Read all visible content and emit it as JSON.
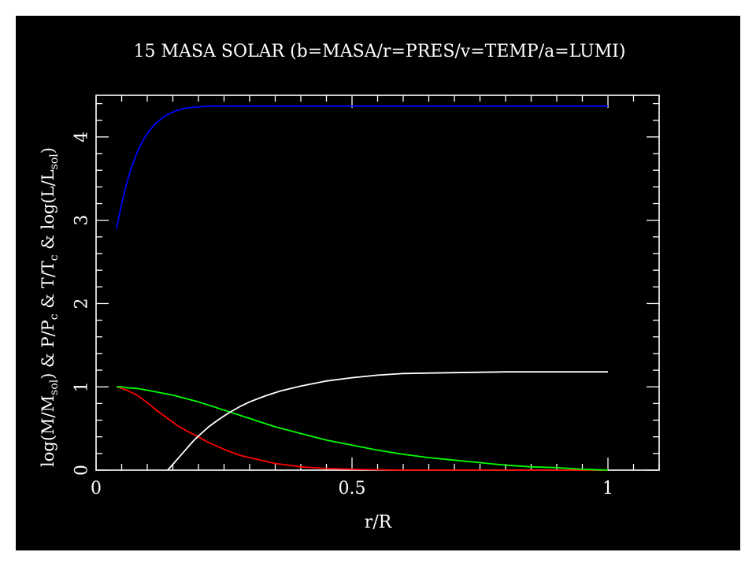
{
  "chart_data": {
    "type": "line",
    "title": "15 MASA SOLAR (b=MASA/r=PRES/v=TEMP/a=LUMI)",
    "xlabel": "r/R",
    "ylabel": {
      "p1": "log(M/M",
      "s1": "sol",
      "p2": ") & P/P",
      "s2": "c",
      "p3": " & T/T",
      "s3": "c",
      "p4": " & log(L/L",
      "s4": "sol",
      "p5": ")"
    },
    "xlim": [
      0,
      1.1
    ],
    "ylim": [
      0,
      4.5
    ],
    "xticks": [
      {
        "value": 0,
        "label": "0"
      },
      {
        "value": 0.5,
        "label": "0.5"
      },
      {
        "value": 1,
        "label": "1"
      }
    ],
    "yticks": [
      {
        "value": 0,
        "label": "0"
      },
      {
        "value": 1,
        "label": "1"
      },
      {
        "value": 2,
        "label": "2"
      },
      {
        "value": 3,
        "label": "3"
      },
      {
        "value": 4,
        "label": "4"
      }
    ],
    "grid": false,
    "colors": {
      "background": "#000000",
      "axes": "#ffffff"
    },
    "series": [
      {
        "color": "#0000ff",
        "x": [
          0.04,
          0.05,
          0.06,
          0.07,
          0.08,
          0.09,
          0.1,
          0.11,
          0.12,
          0.13,
          0.14,
          0.15,
          0.16,
          0.17,
          0.18,
          0.2,
          0.22,
          0.25,
          0.3,
          0.4,
          0.5,
          0.6,
          0.7,
          0.8,
          0.9,
          1.0
        ],
        "y": [
          2.9,
          3.2,
          3.45,
          3.65,
          3.81,
          3.94,
          4.04,
          4.12,
          4.18,
          4.23,
          4.27,
          4.3,
          4.32,
          4.34,
          4.35,
          4.36,
          4.37,
          4.37,
          4.37,
          4.37,
          4.37,
          4.37,
          4.37,
          4.37,
          4.37,
          4.37
        ]
      },
      {
        "color": "#ff0000",
        "x": [
          0.04,
          0.05,
          0.06,
          0.08,
          0.1,
          0.12,
          0.14,
          0.16,
          0.18,
          0.2,
          0.22,
          0.25,
          0.28,
          0.3,
          0.35,
          0.4,
          0.45,
          0.5,
          0.55,
          0.6,
          0.7,
          0.8,
          0.9,
          1.0
        ],
        "y": [
          1.0,
          0.98,
          0.96,
          0.9,
          0.81,
          0.71,
          0.62,
          0.53,
          0.46,
          0.4,
          0.33,
          0.25,
          0.18,
          0.15,
          0.08,
          0.04,
          0.02,
          0.01,
          0.005,
          0.0,
          0.0,
          0.0,
          0.0,
          0.0
        ]
      },
      {
        "color": "#00ff00",
        "x": [
          0.04,
          0.05,
          0.06,
          0.08,
          0.1,
          0.15,
          0.2,
          0.25,
          0.3,
          0.35,
          0.4,
          0.45,
          0.5,
          0.55,
          0.6,
          0.65,
          0.7,
          0.75,
          0.8,
          0.85,
          0.9,
          0.95,
          1.0
        ],
        "y": [
          1.0,
          1.0,
          0.99,
          0.98,
          0.96,
          0.9,
          0.82,
          0.72,
          0.62,
          0.52,
          0.44,
          0.36,
          0.3,
          0.24,
          0.19,
          0.15,
          0.12,
          0.09,
          0.06,
          0.04,
          0.03,
          0.01,
          0.0
        ]
      },
      {
        "color": "#ffffff",
        "x": [
          0.14,
          0.15,
          0.16,
          0.17,
          0.18,
          0.19,
          0.2,
          0.22,
          0.24,
          0.26,
          0.28,
          0.3,
          0.33,
          0.36,
          0.4,
          0.45,
          0.5,
          0.55,
          0.6,
          0.7,
          0.8,
          0.9,
          1.0
        ],
        "y": [
          0.0,
          0.07,
          0.14,
          0.21,
          0.28,
          0.35,
          0.41,
          0.52,
          0.61,
          0.69,
          0.76,
          0.82,
          0.89,
          0.95,
          1.01,
          1.07,
          1.11,
          1.14,
          1.16,
          1.17,
          1.18,
          1.18,
          1.18
        ]
      }
    ]
  }
}
